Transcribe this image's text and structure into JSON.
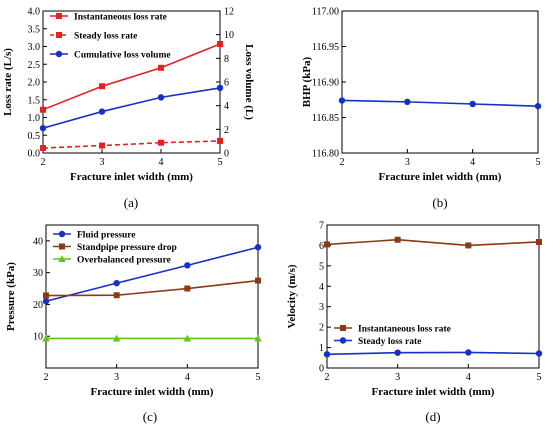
{
  "chart_data": [
    {
      "panel": "(a)",
      "type": "line",
      "x": [
        2,
        3,
        4,
        5
      ],
      "xlabel": "Fracture inlet width (mm)",
      "ylabel": "Loss rate (L/s)",
      "ylabel_right": "Loss volume (L)",
      "xlim": [
        2,
        5
      ],
      "ylim": [
        0,
        4.0
      ],
      "ylim_right": [
        0,
        12
      ],
      "xticks": [
        "2",
        "3",
        "4",
        "5"
      ],
      "yticks": [
        "0.0",
        "0.5",
        "1.0",
        "1.5",
        "2.0",
        "2.5",
        "3.0",
        "3.5",
        "4.0"
      ],
      "yticks_right": [
        "0",
        "2",
        "4",
        "6",
        "8",
        "10",
        "12"
      ],
      "legend_position": "top-left",
      "series": [
        {
          "name": "Instantaneous loss rate",
          "values": [
            1.22,
            1.88,
            2.4,
            3.07
          ],
          "axis": "left",
          "color": "#e8201f",
          "marker": "square",
          "dash": "solid"
        },
        {
          "name": "Steady loss rate",
          "values": [
            0.14,
            0.21,
            0.29,
            0.34
          ],
          "axis": "left",
          "color": "#e8201f",
          "marker": "square",
          "dash": "dashed"
        },
        {
          "name": "Cumulative loss volume",
          "values": [
            2.1,
            3.5,
            4.7,
            5.5
          ],
          "axis": "right",
          "color": "#1630c8",
          "marker": "circle",
          "dash": "solid"
        }
      ]
    },
    {
      "panel": "(b)",
      "type": "line",
      "x": [
        2,
        3,
        4,
        5
      ],
      "xlabel": "Fracture inlet width (mm)",
      "ylabel": "BHP (kPa)",
      "xlim": [
        2,
        5
      ],
      "ylim": [
        116.8,
        117.0
      ],
      "xticks": [
        "2",
        "3",
        "4",
        "5"
      ],
      "yticks": [
        "116.80",
        "116.85",
        "116.90",
        "116.95",
        "117.00"
      ],
      "series": [
        {
          "name": "",
          "values": [
            116.874,
            116.872,
            116.869,
            116.866
          ],
          "axis": "left",
          "color": "#1630c8",
          "marker": "circle",
          "dash": "solid"
        }
      ]
    },
    {
      "panel": "(c)",
      "type": "line",
      "x": [
        2,
        3,
        4,
        5
      ],
      "xlabel": "Fracture inlet width (mm)",
      "ylabel": "Pressure (kPa)",
      "xlim": [
        2,
        5
      ],
      "ylim": [
        0,
        45
      ],
      "xticks": [
        "2",
        "3",
        "4",
        "5"
      ],
      "yticks": [
        "10",
        "20",
        "30",
        "40"
      ],
      "legend_position": "top-left",
      "series": [
        {
          "name": "Fluid pressure",
          "values": [
            21.0,
            26.7,
            32.3,
            38.0
          ],
          "axis": "left",
          "color": "#1630c8",
          "marker": "circle",
          "dash": "solid"
        },
        {
          "name": "Standpipe pressure drop",
          "values": [
            22.8,
            22.9,
            25.0,
            27.5
          ],
          "axis": "left",
          "color": "#8b3a14",
          "marker": "square",
          "dash": "solid"
        },
        {
          "name": "Overbalanced pressure",
          "values": [
            9.3,
            9.3,
            9.3,
            9.3
          ],
          "axis": "left",
          "color": "#5fc81e",
          "marker": "triangle",
          "dash": "solid"
        }
      ]
    },
    {
      "panel": "(d)",
      "type": "line",
      "x": [
        2,
        3,
        4,
        5
      ],
      "xlabel": "Fracture inlet width (mm)",
      "ylabel": "Velocity (m/s)",
      "xlim": [
        2,
        5
      ],
      "ylim": [
        0,
        7
      ],
      "xticks": [
        "2",
        "3",
        "4",
        "5"
      ],
      "yticks": [
        "0",
        "1",
        "2",
        "3",
        "4",
        "5",
        "6",
        "7"
      ],
      "legend_position": "bottom-left",
      "series": [
        {
          "name": "Instantaneous loss rate",
          "values": [
            6.05,
            6.28,
            6.0,
            6.17
          ],
          "axis": "left",
          "color": "#8b3a14",
          "marker": "square",
          "dash": "solid"
        },
        {
          "name": "Steady loss rate",
          "values": [
            0.67,
            0.75,
            0.76,
            0.71
          ],
          "axis": "left",
          "color": "#1630c8",
          "marker": "circle",
          "dash": "solid"
        }
      ]
    }
  ]
}
